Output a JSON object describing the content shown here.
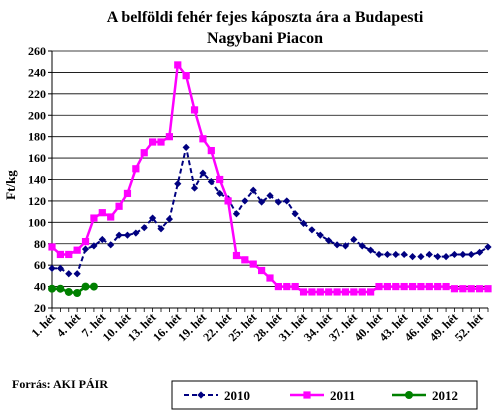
{
  "chart_data": {
    "type": "line",
    "title_lines": [
      "A belföldi fehér fejes káposzta ára a Budapesti",
      "Nagybani Piacon"
    ],
    "ylabel": "Ft/kg",
    "xlabel": "",
    "ylim": [
      20,
      260
    ],
    "yticks": [
      20,
      40,
      60,
      80,
      100,
      120,
      140,
      160,
      180,
      200,
      220,
      240,
      260
    ],
    "x_tick_labels": [
      {
        "week": 1,
        "label": "1. hét"
      },
      {
        "week": 4,
        "label": "4. hét"
      },
      {
        "week": 7,
        "label": "7. hét"
      },
      {
        "week": 10,
        "label": "10. hét"
      },
      {
        "week": 13,
        "label": "13. hét"
      },
      {
        "week": 16,
        "label": "16. hét"
      },
      {
        "week": 19,
        "label": "19. hét"
      },
      {
        "week": 22,
        "label": "22. hét"
      },
      {
        "week": 25,
        "label": "25. hét"
      },
      {
        "week": 28,
        "label": "28. hét"
      },
      {
        "week": 31,
        "label": "31. hét"
      },
      {
        "week": 34,
        "label": "34. hét"
      },
      {
        "week": 37,
        "label": "37. hét"
      },
      {
        "week": 40,
        "label": "40. hét"
      },
      {
        "week": 43,
        "label": "43. hét"
      },
      {
        "week": 46,
        "label": "46. hét"
      },
      {
        "week": 49,
        "label": "49. hét"
      },
      {
        "week": 52,
        "label": "52. hét"
      }
    ],
    "grid": "horizontal",
    "legend_position": "bottom",
    "series": [
      {
        "name": "2010",
        "color": "#000080",
        "marker": "diamond",
        "dashed": true,
        "weeks": [
          1,
          2,
          3,
          4,
          5,
          6,
          7,
          8,
          9,
          10,
          11,
          12,
          13,
          14,
          15,
          16,
          17,
          18,
          19,
          20,
          21,
          22,
          23,
          24,
          25,
          26,
          27,
          28,
          29,
          30,
          31,
          32,
          33,
          34,
          35,
          36,
          37,
          38,
          39,
          40,
          41,
          42,
          43,
          44,
          45,
          46,
          47,
          48,
          49,
          50,
          51,
          52,
          53
        ],
        "values": [
          57,
          57,
          52,
          52,
          75,
          78,
          84,
          79,
          88,
          88,
          90,
          95,
          104,
          94,
          103,
          136,
          170,
          132,
          146,
          138,
          127,
          122,
          108,
          120,
          130,
          119,
          125,
          119,
          120,
          108,
          99,
          93,
          88,
          83,
          79,
          78,
          84,
          78,
          74,
          70,
          70,
          70,
          70,
          68,
          68,
          70,
          68,
          68,
          70,
          70,
          70,
          72,
          77
        ]
      },
      {
        "name": "2011",
        "color": "#ff00ff",
        "marker": "square",
        "dashed": false,
        "weeks": [
          1,
          2,
          3,
          4,
          5,
          6,
          7,
          8,
          9,
          10,
          11,
          12,
          13,
          14,
          15,
          16,
          17,
          18,
          19,
          20,
          21,
          22,
          23,
          24,
          25,
          26,
          27,
          28,
          29,
          30,
          31,
          32,
          33,
          34,
          35,
          36,
          37,
          38,
          39,
          40,
          41,
          42,
          43,
          44,
          45,
          46,
          47,
          48,
          49,
          50,
          51,
          52,
          53
        ],
        "values": [
          77,
          70,
          70,
          74,
          82,
          104,
          109,
          105,
          115,
          127,
          150,
          165,
          175,
          175,
          180,
          247,
          237,
          205,
          178,
          167,
          140,
          120,
          69,
          65,
          61,
          55,
          48,
          40,
          40,
          40,
          35,
          35,
          35,
          35,
          35,
          35,
          35,
          35,
          35,
          40,
          40,
          40,
          40,
          40,
          40,
          40,
          40,
          40,
          38,
          38,
          38,
          38,
          38
        ]
      },
      {
        "name": "2012",
        "color": "#008000",
        "marker": "circle",
        "dashed": false,
        "weeks": [
          1,
          2,
          3,
          4,
          5,
          6
        ],
        "values": [
          38,
          38,
          35,
          34,
          40,
          40
        ]
      }
    ]
  },
  "source_text": "Forrás: AKI PÁIR"
}
